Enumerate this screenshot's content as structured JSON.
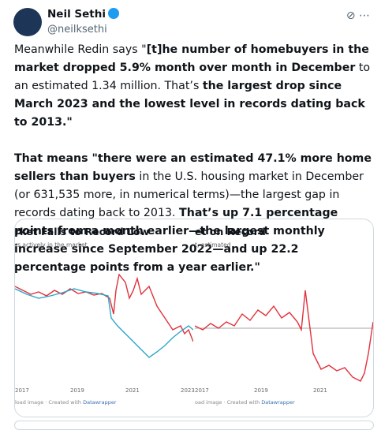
{
  "author": {
    "name": "Neil Sethi",
    "handle": "@neilksethi"
  },
  "tweet": {
    "paragraphs": [
      [
        {
          "text": "Meanwhile Redin says \"",
          "bold": false
        },
        {
          "text": "[t]he number of homebuyers in the market dropped 5.9% month over month in December",
          "bold": true
        },
        {
          "text": " to an estimated 1.34 million. That’s ",
          "bold": false
        },
        {
          "text": "the largest drop since March 2023 and the lowest level in records dating back to 2013.\"",
          "bold": true
        }
      ],
      [
        {
          "text": "That means \"there were an estimated 47.1% more home sellers than buyers",
          "bold": true
        },
        {
          "text": " in the U.S. housing market in December (or 631,535 more, in numerical terms)—the largest gap in records dating back to 2013. ",
          "bold": false
        },
        {
          "text": "That’s up 7.1 percentage points from a month earlier—the largest monthly increase since September 2022—and up 22.2 percentage points from a year earlier.\"",
          "bold": true
        }
      ]
    ]
  },
  "card": {
    "left": {
      "title": "rket Falls to Record Low",
      "subtitle": "rs actively in the market",
      "x_labels": [
        "2017",
        "2019",
        "2021",
        "2023"
      ],
      "footer": "load image",
      "credit": " · Created with ",
      "brand": "Datawrapper"
    },
    "right": {
      "title": "et on Record",
      "subtitle": "t, estimated",
      "x_labels": [
        "2017",
        "2019",
        "2021"
      ],
      "footer": "oad image",
      "credit": " · Created with ",
      "brand": "Datawrapper"
    }
  }
}
